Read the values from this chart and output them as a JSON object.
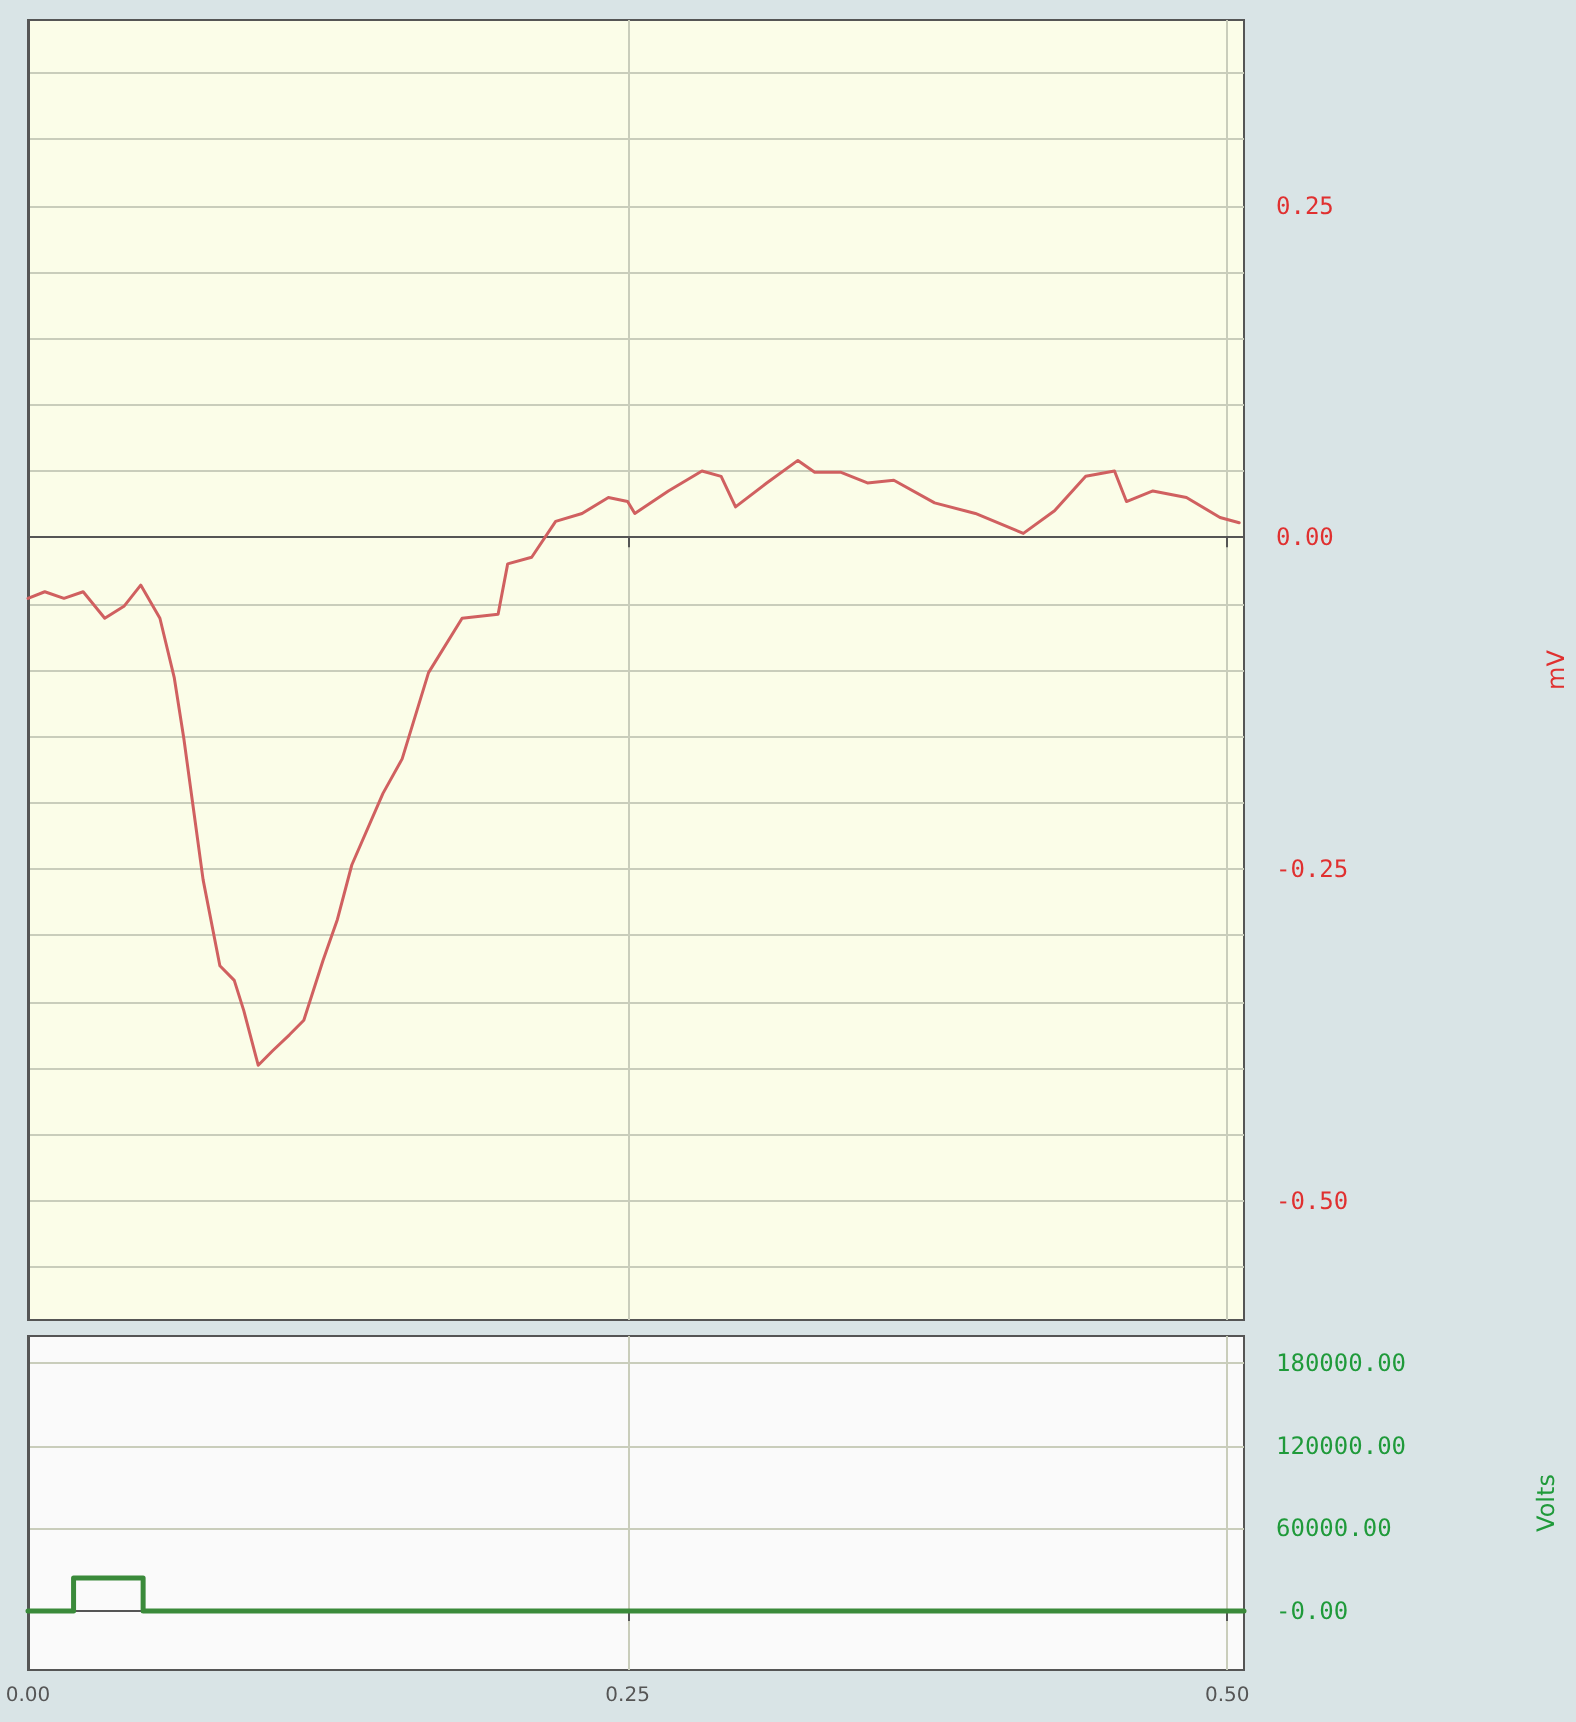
{
  "chart_data": [
    {
      "type": "line",
      "ylabel": "mV",
      "tick_labels": "y",
      "grid": true,
      "marker": "none",
      "line_style": "solid",
      "xlim": [
        0,
        0.507
      ],
      "ylim": [
        -0.59,
        0.39
      ],
      "xticks": [
        {
          "value": 0,
          "label": null
        },
        {
          "value": 0.25,
          "label": null
        },
        {
          "value": 0.5,
          "label": null
        }
      ],
      "yticks": [
        {
          "value": -0.55,
          "label": null
        },
        {
          "value": -0.5,
          "label": "-0.50"
        },
        {
          "value": -0.45,
          "label": null
        },
        {
          "value": -0.4,
          "label": null
        },
        {
          "value": -0.35,
          "label": null
        },
        {
          "value": -0.3,
          "label": null
        },
        {
          "value": -0.25,
          "label": "-0.25"
        },
        {
          "value": -0.2,
          "label": null
        },
        {
          "value": -0.15,
          "label": null
        },
        {
          "value": -0.1,
          "label": null
        },
        {
          "value": -0.05,
          "label": null
        },
        {
          "value": 0,
          "label": "0.00"
        },
        {
          "value": 0.05,
          "label": null
        },
        {
          "value": 0.1,
          "label": null
        },
        {
          "value": 0.15,
          "label": null
        },
        {
          "value": 0.2,
          "label": null
        },
        {
          "value": 0.25,
          "label": "0.25"
        },
        {
          "value": 0.3,
          "label": null
        },
        {
          "value": 0.35,
          "label": null
        }
      ],
      "series": [
        {
          "color": "#d06060",
          "x": [
            0,
            0.007,
            0.015,
            0.023,
            0.032,
            0.04,
            0.047,
            0.055,
            0.061,
            0.065,
            0.069,
            0.073,
            0.08,
            0.086,
            0.09,
            0.096,
            0.102,
            0.109,
            0.115,
            0.123,
            0.129,
            0.135,
            0.148,
            0.156,
            0.167,
            0.181,
            0.196,
            0.2,
            0.21,
            0.22,
            0.231,
            0.242,
            0.25,
            0.253,
            0.267,
            0.281,
            0.289,
            0.295,
            0.308,
            0.321,
            0.328,
            0.339,
            0.35,
            0.361,
            0.378,
            0.395,
            0.415,
            0.428,
            0.441,
            0.453,
            0.458,
            0.469,
            0.483,
            0.497,
            0.505
          ],
          "values": [
            -0.046,
            -0.041,
            -0.046,
            -0.041,
            -0.061,
            -0.052,
            -0.036,
            -0.061,
            -0.106,
            -0.152,
            -0.205,
            -0.258,
            -0.323,
            -0.334,
            -0.357,
            -0.398,
            -0.387,
            -0.375,
            -0.364,
            -0.319,
            -0.288,
            -0.247,
            -0.193,
            -0.167,
            -0.102,
            -0.061,
            -0.058,
            -0.02,
            -0.015,
            0.012,
            0.018,
            0.03,
            0.027,
            0.018,
            0.035,
            0.05,
            0.046,
            0.023,
            0.041,
            0.058,
            0.049,
            0.049,
            0.041,
            0.043,
            0.026,
            0.018,
            0.003,
            0.02,
            0.046,
            0.05,
            0.027,
            0.035,
            0.03,
            0.015,
            0.011
          ]
        }
      ]
    },
    {
      "type": "line",
      "ylabel": "Volts",
      "grid": true,
      "marker": "none",
      "line_style": "solid",
      "xlim": [
        0,
        0.507
      ],
      "ylim": [
        -43000,
        200000
      ],
      "xticks": [
        {
          "value": 0,
          "label": "0.00"
        },
        {
          "value": 0.25,
          "label": "0.25"
        },
        {
          "value": 0.5,
          "label": "0.50"
        }
      ],
      "yticks": [
        {
          "value": 0,
          "label": "-0.00"
        },
        {
          "value": 60000,
          "label": "60000.00"
        },
        {
          "value": 120000,
          "label": "120000.00"
        },
        {
          "value": 180000,
          "label": "180000.00"
        }
      ],
      "series": [
        {
          "color": "#3a8a3a",
          "x": [
            0,
            0.019,
            0.019,
            0.048,
            0.048,
            0.507
          ],
          "values": [
            0,
            0,
            24000,
            24000,
            0,
            0
          ]
        }
      ]
    }
  ]
}
